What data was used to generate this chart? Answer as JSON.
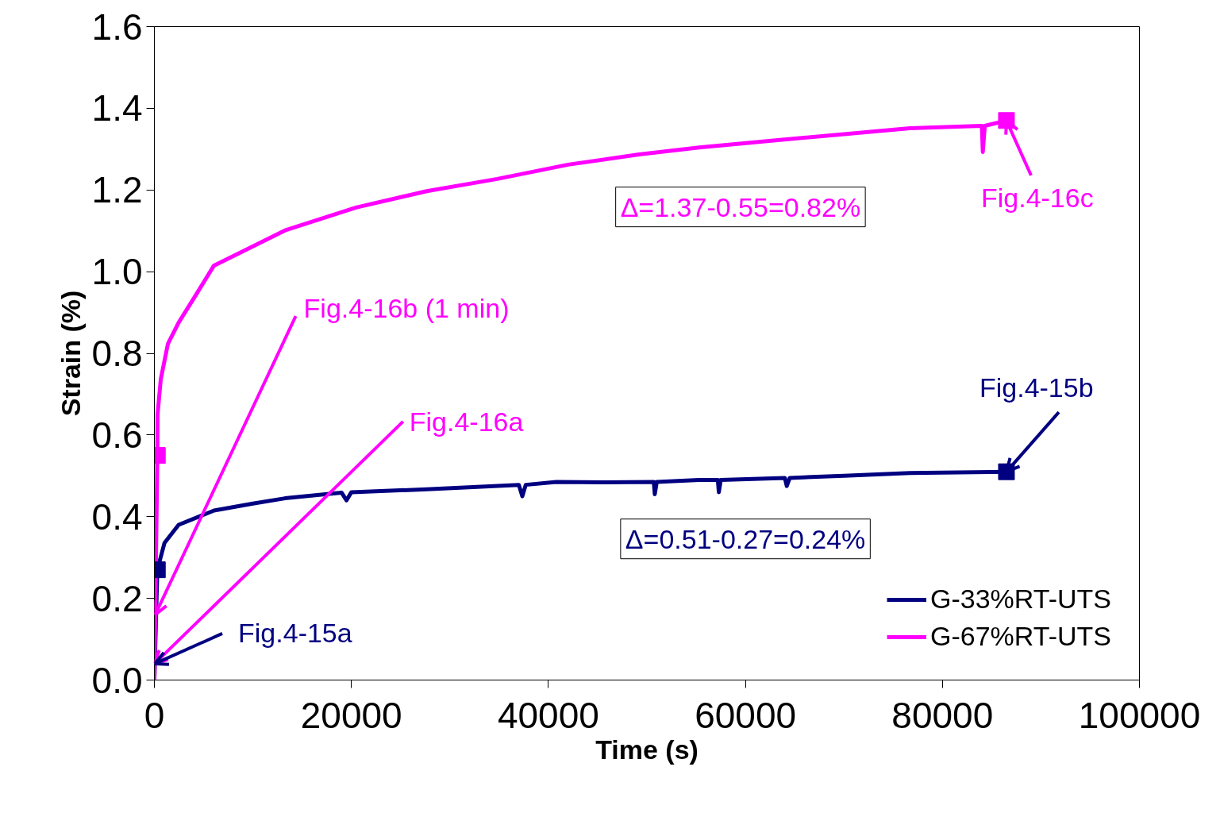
{
  "chart_data": {
    "type": "line",
    "xlabel": "Time (s)",
    "ylabel": "Strain (%)",
    "xlim": [
      0,
      100000
    ],
    "xticks": [
      0,
      20000,
      40000,
      60000,
      80000,
      100000
    ],
    "ylim": [
      0,
      1.6
    ],
    "yticks": [
      {
        "value": 0,
        "label": "0.0"
      },
      0.2,
      0.4,
      0.6,
      0.8,
      {
        "value": 1,
        "label": "1.0"
      },
      1.2,
      1.4,
      1.6
    ],
    "grid": false,
    "legend": "bottom right",
    "line_style": "solid",
    "series": [
      {
        "name": "G-33%RT-UTS",
        "color": "#000080",
        "x": [
          0,
          300,
          1030,
          2460,
          6050,
          10000,
          13260,
          19000,
          19500,
          20000,
          27650,
          37000,
          37350,
          37700,
          40800,
          45600,
          50700,
          50800,
          51000,
          55300,
          57200,
          57300,
          57500,
          64000,
          64200,
          64500,
          70000,
          76700,
          86500
        ],
        "values": [
          0,
          0.27,
          0.336,
          0.38,
          0.415,
          0.432,
          0.445,
          0.459,
          0.44,
          0.46,
          0.467,
          0.478,
          0.45,
          0.478,
          0.485,
          0.484,
          0.485,
          0.455,
          0.485,
          0.49,
          0.49,
          0.46,
          0.49,
          0.495,
          0.475,
          0.495,
          0.5,
          0.507,
          0.51
        ]
      },
      {
        "name": "G-67%RT-UTS",
        "color": "#ff00ff",
        "x": [
          0,
          300,
          320,
          650,
          1370,
          2460,
          4270,
          6050,
          13260,
          20470,
          27650,
          34800,
          42000,
          49200,
          55300,
          62400,
          76700,
          84000,
          84100,
          84300,
          86500
        ],
        "values": [
          0,
          0.55,
          0.65,
          0.737,
          0.823,
          0.875,
          0.945,
          1.015,
          1.101,
          1.157,
          1.197,
          1.227,
          1.262,
          1.287,
          1.304,
          1.32,
          1.351,
          1.357,
          1.293,
          1.357,
          1.37
        ]
      },
      {
        "type": "scatter",
        "marker": "square",
        "color": "#000080",
        "x": [
          300,
          86500
        ],
        "values": [
          0.27,
          0.51
        ]
      },
      {
        "type": "scatter",
        "marker": "square",
        "color": "#ff00ff",
        "x": [
          300,
          86500
        ],
        "values": [
          0.55,
          1.37
        ]
      }
    ],
    "annotations": [
      {
        "text": "Fig.4-16c",
        "x": 86500,
        "y": 1.37
      },
      {
        "text": "Fig.4-16b (1 min)",
        "x": 87,
        "y": 0.16
      },
      {
        "text": "Fig.4-16a",
        "x": 22,
        "y": 0.04
      },
      {
        "text": "Fig.4-15a",
        "x": 44,
        "y": 0.04
      },
      {
        "text": "Fig.4-15b",
        "x": 86500,
        "y": 0.51
      },
      "Δ=1.37-0.55=0.82%",
      "Δ=0.51-0.27=0.24%"
    ]
  }
}
